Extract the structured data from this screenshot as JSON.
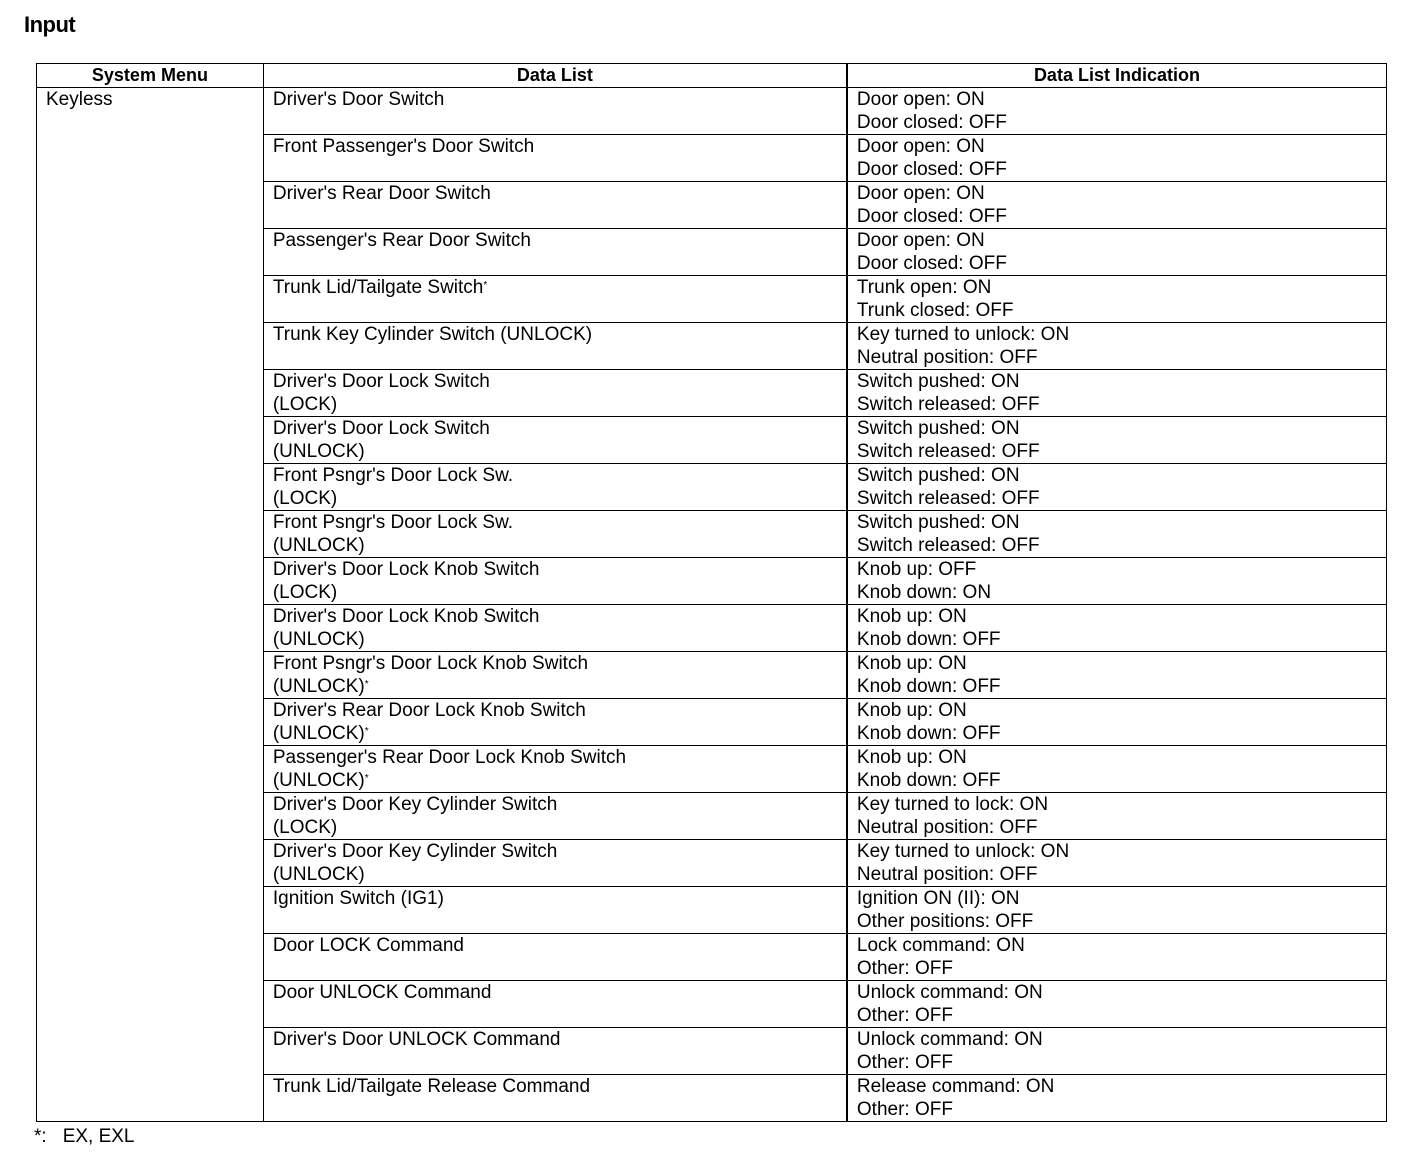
{
  "title": "Input",
  "headers": [
    "System Menu",
    "Data List",
    "Data List Indication"
  ],
  "system_menu": "Keyless",
  "rows": [
    {
      "lines": [
        "Driver's Door Switch"
      ],
      "mark": "",
      "indication": [
        "Door open: ON",
        "Door closed: OFF"
      ]
    },
    {
      "lines": [
        "Front Passenger's Door Switch"
      ],
      "mark": "",
      "indication": [
        "Door open: ON",
        "Door closed: OFF"
      ]
    },
    {
      "lines": [
        "Driver's Rear Door Switch"
      ],
      "mark": "",
      "indication": [
        "Door open: ON",
        "Door closed: OFF"
      ]
    },
    {
      "lines": [
        "Passenger's Rear Door Switch"
      ],
      "mark": "",
      "indication": [
        "Door open: ON",
        "Door closed: OFF"
      ]
    },
    {
      "lines": [
        "Trunk Lid/Tailgate Switch"
      ],
      "mark": "*",
      "indication": [
        "Trunk open: ON",
        "Trunk closed: OFF"
      ]
    },
    {
      "lines": [
        "Trunk Key Cylinder Switch (UNLOCK)"
      ],
      "mark": "",
      "indication": [
        "Key turned to unlock: ON",
        "Neutral position: OFF"
      ]
    },
    {
      "lines": [
        "Driver's Door Lock Switch",
        "(LOCK)"
      ],
      "mark": "",
      "indication": [
        "Switch pushed: ON",
        "Switch released: OFF"
      ]
    },
    {
      "lines": [
        "Driver's Door Lock Switch",
        "(UNLOCK)"
      ],
      "mark": "",
      "indication": [
        "Switch pushed: ON",
        "Switch released: OFF"
      ]
    },
    {
      "lines": [
        "Front Psngr's Door Lock Sw.",
        "(LOCK)"
      ],
      "mark": "",
      "indication": [
        "Switch pushed: ON",
        "Switch released: OFF"
      ]
    },
    {
      "lines": [
        "Front Psngr's Door Lock Sw.",
        "(UNLOCK)"
      ],
      "mark": "",
      "indication": [
        "Switch pushed: ON",
        "Switch released: OFF"
      ]
    },
    {
      "lines": [
        "Driver's Door Lock Knob Switch",
        "(LOCK)"
      ],
      "mark": "",
      "indication": [
        "Knob up: OFF",
        "Knob down: ON"
      ]
    },
    {
      "lines": [
        "Driver's Door Lock Knob Switch",
        "(UNLOCK)"
      ],
      "mark": "",
      "indication": [
        "Knob up: ON",
        "Knob down: OFF"
      ]
    },
    {
      "lines": [
        "Front Psngr's Door Lock Knob Switch",
        "(UNLOCK)"
      ],
      "mark": "*",
      "indication": [
        "Knob up: ON",
        "Knob down: OFF"
      ]
    },
    {
      "lines": [
        "Driver's Rear Door Lock Knob Switch",
        "(UNLOCK)"
      ],
      "mark": "*",
      "indication": [
        "Knob up: ON",
        "Knob down: OFF"
      ]
    },
    {
      "lines": [
        "Passenger's Rear Door Lock Knob Switch",
        "(UNLOCK)"
      ],
      "mark": "*",
      "indication": [
        "Knob up: ON",
        "Knob down: OFF"
      ]
    },
    {
      "lines": [
        "Driver's Door Key Cylinder Switch",
        "(LOCK)"
      ],
      "mark": "",
      "indication": [
        "Key turned to lock: ON",
        "Neutral position: OFF"
      ]
    },
    {
      "lines": [
        "Driver's Door Key Cylinder Switch",
        "(UNLOCK)"
      ],
      "mark": "",
      "indication": [
        "Key turned to unlock: ON",
        "Neutral position: OFF"
      ]
    },
    {
      "lines": [
        "Ignition Switch (IG1)"
      ],
      "mark": "",
      "indication": [
        "Ignition ON (II): ON",
        "Other positions: OFF"
      ]
    },
    {
      "lines": [
        "Door LOCK Command"
      ],
      "mark": "",
      "indication": [
        "Lock command: ON",
        "Other: OFF"
      ]
    },
    {
      "lines": [
        "Door UNLOCK Command"
      ],
      "mark": "",
      "indication": [
        "Unlock command: ON",
        "Other: OFF"
      ]
    },
    {
      "lines": [
        "Driver's Door UNLOCK Command"
      ],
      "mark": "",
      "indication": [
        "Unlock command: ON",
        "Other: OFF"
      ]
    },
    {
      "lines": [
        "Trunk Lid/Tailgate Release Command"
      ],
      "mark": "",
      "indication": [
        "Release command: ON",
        "Other: OFF"
      ]
    }
  ],
  "footnote": {
    "mark": "*:",
    "text": "EX, EXL"
  }
}
